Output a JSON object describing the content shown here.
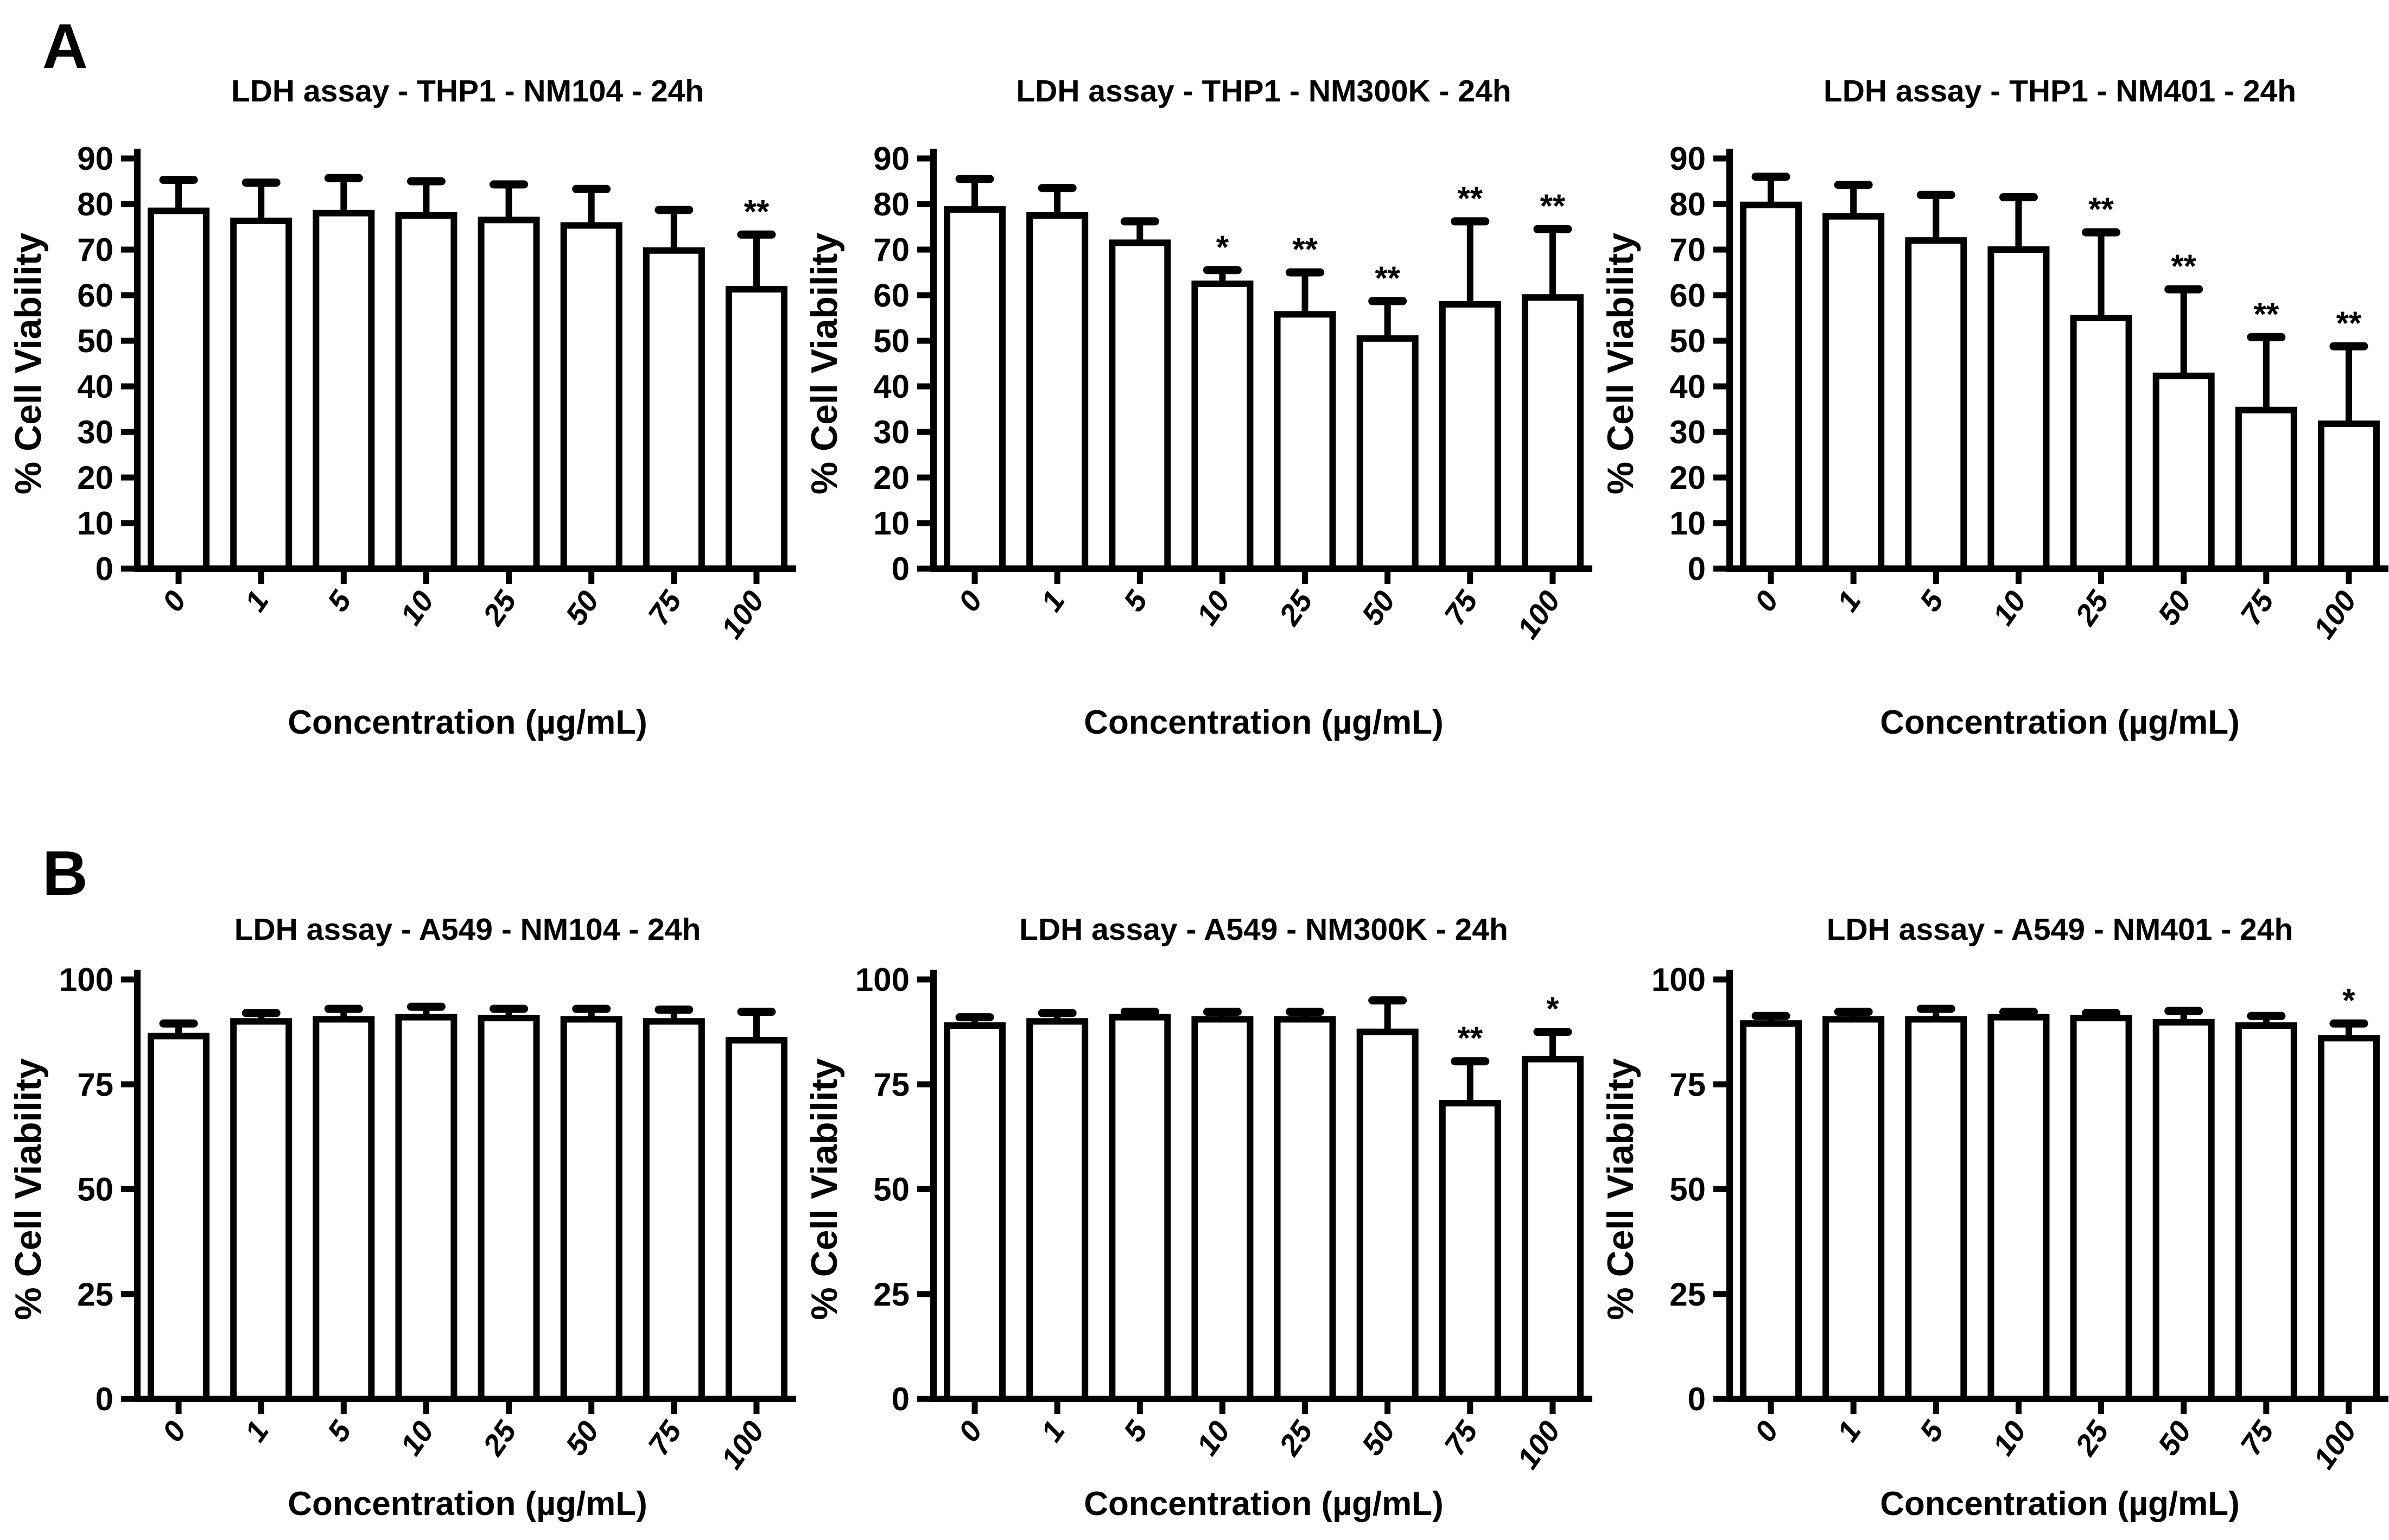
{
  "figure": {
    "row_labels": [
      "A",
      "B"
    ],
    "colors": {
      "ink": "#000000",
      "background": "#ffffff",
      "bar_fill": "#ffffff",
      "bar_border": "#000000"
    }
  },
  "chart_data": [
    {
      "type": "bar",
      "panel": "A",
      "title": "LDH assay - THP1 - NM104 - 24h",
      "xlabel": "Concentration (µg/mL)",
      "ylabel": "% Cell Viability",
      "ylim": [
        0,
        90
      ],
      "yticks": [
        0,
        10,
        20,
        30,
        40,
        50,
        60,
        70,
        80,
        90
      ],
      "categories": [
        "0",
        "1",
        "5",
        "10",
        "25",
        "50",
        "75",
        "100"
      ],
      "values": [
        78.5,
        76.3,
        78.0,
        77.5,
        76.5,
        75.3,
        69.8,
        61.3
      ],
      "error_top": [
        85.3,
        84.7,
        85.7,
        85.0,
        84.3,
        83.3,
        78.7,
        73.3
      ],
      "significance": [
        "",
        "",
        "",
        "",
        "",
        "",
        "",
        "**"
      ],
      "grid": false,
      "legend": null
    },
    {
      "type": "bar",
      "panel": "A",
      "title": "LDH assay - THP1 - NM300K - 24h",
      "xlabel": "Concentration (µg/mL)",
      "ylabel": "% Cell Viability",
      "ylim": [
        0,
        90
      ],
      "yticks": [
        0,
        10,
        20,
        30,
        40,
        50,
        60,
        70,
        80,
        90
      ],
      "categories": [
        "0",
        "1",
        "5",
        "10",
        "25",
        "50",
        "75",
        "100"
      ],
      "values": [
        78.8,
        77.5,
        71.5,
        62.5,
        55.8,
        50.5,
        58.0,
        59.5
      ],
      "error_top": [
        85.5,
        83.5,
        76.2,
        65.5,
        65.0,
        58.7,
        76.2,
        74.5
      ],
      "significance": [
        "",
        "",
        "",
        "*",
        "**",
        "**",
        "**",
        "**"
      ],
      "grid": false,
      "legend": null
    },
    {
      "type": "bar",
      "panel": "A",
      "title": "LDH assay - THP1 - NM401 - 24h",
      "xlabel": "Concentration (µg/mL)",
      "ylabel": "% Cell Viability",
      "ylim": [
        0,
        90
      ],
      "yticks": [
        0,
        10,
        20,
        30,
        40,
        50,
        60,
        70,
        80,
        90
      ],
      "categories": [
        "0",
        "1",
        "5",
        "10",
        "25",
        "50",
        "75",
        "100"
      ],
      "values": [
        79.8,
        77.3,
        72.0,
        70.0,
        55.0,
        42.3,
        34.8,
        31.8
      ],
      "error_top": [
        86.0,
        84.2,
        82.0,
        81.5,
        73.8,
        61.3,
        50.8,
        48.8
      ],
      "significance": [
        "",
        "",
        "",
        "",
        "**",
        "**",
        "**",
        "**"
      ],
      "grid": false,
      "legend": null
    },
    {
      "type": "bar",
      "panel": "B",
      "title": "LDH assay - A549 - NM104 - 24h",
      "xlabel": "Concentration (µg/mL)",
      "ylabel": "% Cell Viability",
      "ylim": [
        0,
        100
      ],
      "yticks": [
        0,
        25,
        50,
        75,
        100
      ],
      "categories": [
        "0",
        "1",
        "5",
        "10",
        "25",
        "50",
        "75",
        "100"
      ],
      "values": [
        86.5,
        90.0,
        90.5,
        91.0,
        90.8,
        90.5,
        90.0,
        85.5
      ],
      "error_top": [
        89.5,
        92.0,
        93.0,
        93.5,
        93.0,
        93.0,
        92.8,
        92.3
      ],
      "significance": [
        "",
        "",
        "",
        "",
        "",
        "",
        "",
        ""
      ],
      "grid": false,
      "legend": null
    },
    {
      "type": "bar",
      "panel": "B",
      "title": "LDH assay - A549 - NM300K - 24h",
      "xlabel": "Concentration (µg/mL)",
      "ylabel": "% Cell Viability",
      "ylim": [
        0,
        100
      ],
      "yticks": [
        0,
        25,
        50,
        75,
        100
      ],
      "categories": [
        "0",
        "1",
        "5",
        "10",
        "25",
        "50",
        "75",
        "100"
      ],
      "values": [
        89.0,
        90.0,
        91.0,
        90.5,
        90.5,
        87.5,
        70.5,
        81.0
      ],
      "error_top": [
        91.0,
        92.0,
        92.3,
        92.3,
        92.3,
        95.0,
        80.5,
        87.5
      ],
      "significance": [
        "",
        "",
        "",
        "",
        "",
        "",
        "**",
        "*"
      ],
      "grid": false,
      "legend": null
    },
    {
      "type": "bar",
      "panel": "B",
      "title": "LDH assay - A549 - NM401 - 24h",
      "xlabel": "Concentration (µg/mL)",
      "ylabel": "% Cell Viability",
      "ylim": [
        0,
        100
      ],
      "yticks": [
        0,
        25,
        50,
        75,
        100
      ],
      "categories": [
        "0",
        "1",
        "5",
        "10",
        "25",
        "50",
        "75",
        "100"
      ],
      "values": [
        89.5,
        90.5,
        90.5,
        91.0,
        90.8,
        89.8,
        89.0,
        86.0
      ],
      "error_top": [
        91.3,
        92.3,
        93.0,
        92.3,
        92.0,
        92.5,
        91.3,
        89.5
      ],
      "significance": [
        "",
        "",
        "",
        "",
        "",
        "",
        "",
        "*"
      ],
      "grid": false,
      "legend": null
    }
  ]
}
